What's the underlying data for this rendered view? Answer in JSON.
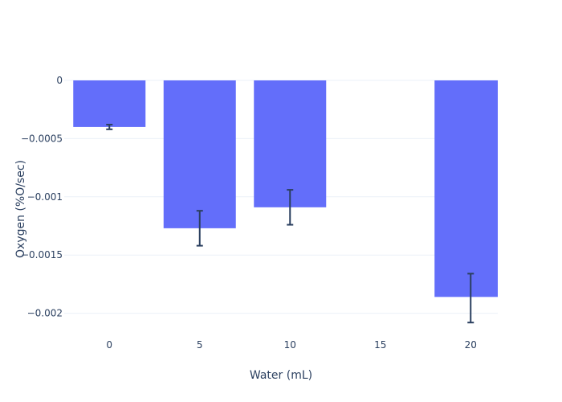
{
  "chart_data": {
    "type": "bar",
    "title": "",
    "xlabel": "Water (mL)",
    "ylabel": "Oxygen (%O/sec)",
    "x": [
      0,
      5,
      10,
      20
    ],
    "values": [
      -0.0004,
      -0.00127,
      -0.00109,
      -0.00186
    ],
    "error_plus": [
      2e-05,
      0.00015,
      0.00015,
      0.0002
    ],
    "error_minus": [
      2e-05,
      0.00015,
      0.00015,
      0.00022
    ],
    "xlim": [
      -2.5,
      21.5
    ],
    "ylim": [
      -0.00221,
      0
    ],
    "x_ticks": [
      0,
      5,
      10,
      15,
      20
    ],
    "x_tick_labels": [
      "0",
      "5",
      "10",
      "15",
      "20"
    ],
    "y_ticks": [
      0,
      -0.0005,
      -0.001,
      -0.0015,
      -0.002
    ],
    "y_tick_labels": [
      "0",
      "−0.0005",
      "−0.001",
      "−0.0015",
      "−0.002"
    ],
    "grid": true,
    "colors": {
      "bar": "#636efa",
      "error": "#2a3f5f",
      "grid": "#ebf0f8",
      "zeroline": "#ebf0f8"
    }
  }
}
